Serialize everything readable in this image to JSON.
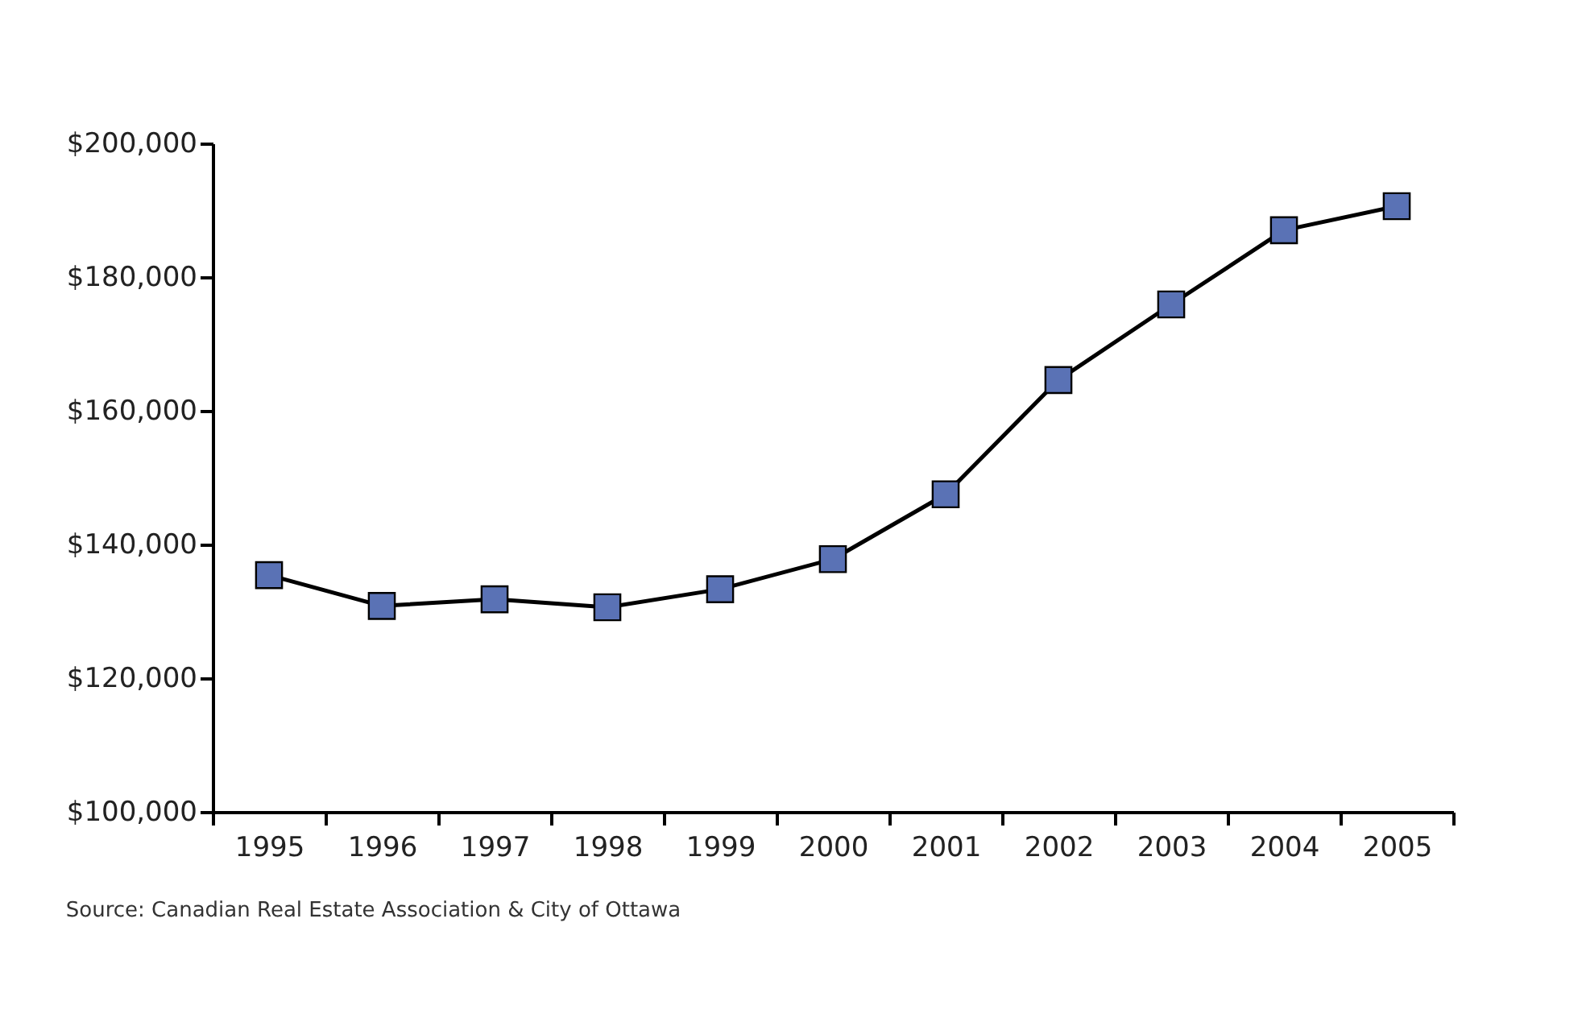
{
  "chart_data": {
    "type": "line",
    "categories": [
      "1995",
      "1996",
      "1997",
      "1998",
      "1999",
      "2000",
      "2001",
      "2002",
      "2003",
      "2004",
      "2005"
    ],
    "series": [
      {
        "color": "#5a72b5",
        "values": [
          135400,
          130800,
          131800,
          130600,
          133300,
          137800,
          147500,
          164600,
          175900,
          187000,
          190600
        ]
      }
    ],
    "ylim": [
      100000,
      200000
    ],
    "yticks": [
      {
        "value": 100000,
        "label": "$100,000"
      },
      {
        "value": 120000,
        "label": "$120,000"
      },
      {
        "value": 140000,
        "label": "$140,000"
      },
      {
        "value": 160000,
        "label": "$160,000"
      },
      {
        "value": 180000,
        "label": "$180,000"
      },
      {
        "value": 200000,
        "label": "$200,000"
      }
    ],
    "marker": "square",
    "line_style": "solid",
    "grid": false,
    "annotations": [
      "Source: Canadian Real Estate Association & City of Ottawa"
    ]
  }
}
